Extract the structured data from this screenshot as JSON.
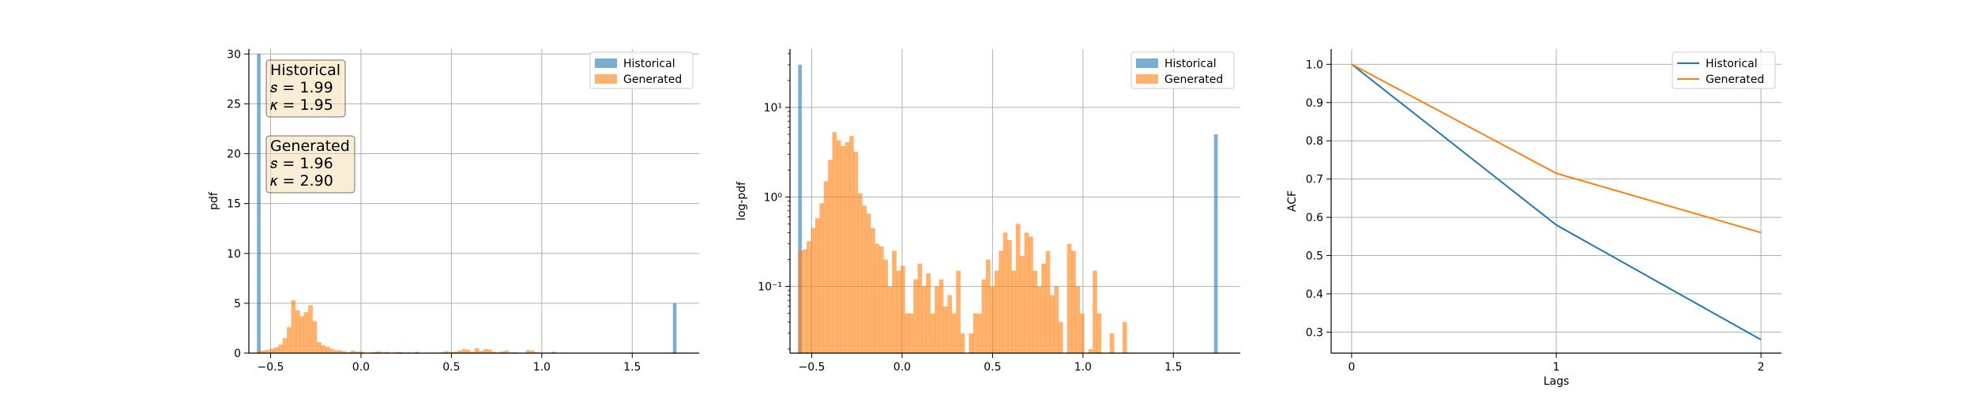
{
  "chart_data": [
    {
      "type": "histogram",
      "ylabel": "pdf",
      "xlim": [
        -0.62,
        1.87
      ],
      "ylim": [
        0,
        30.5
      ],
      "xticks": [
        -0.5,
        0.0,
        0.5,
        1.0,
        1.5
      ],
      "xtick_labels": [
        "−0.5",
        "0.0",
        "0.5",
        "1.0",
        "1.5"
      ],
      "yticks": [
        0,
        5,
        10,
        15,
        20,
        25,
        30
      ],
      "ytick_labels": [
        "0",
        "5",
        "10",
        "15",
        "20",
        "25",
        "30"
      ],
      "grid": true,
      "legend_position": "top-right",
      "series": [
        {
          "name": "Historical",
          "color": "#1f77b4",
          "bins": [
            [
              -0.575,
              -0.555,
              30.0
            ],
            [
              1.725,
              1.745,
              5.0
            ]
          ]
        },
        {
          "name": "Generated",
          "color": "#ff7f0e",
          "bin_start": -0.575,
          "bin_width": 0.0236,
          "values": [
            0.25,
            0.26,
            0.32,
            0.45,
            0.58,
            0.85,
            1.5,
            2.6,
            5.3,
            4.3,
            3.7,
            4.1,
            4.8,
            3.2,
            1.1,
            0.8,
            0.65,
            0.45,
            0.3,
            0.28,
            0.2,
            0.1,
            0.25,
            0.15,
            0.17,
            0.05,
            0.05,
            0.12,
            0.18,
            0.1,
            0.14,
            0.05,
            0.1,
            0.12,
            0.06,
            0.08,
            0.05,
            0.15,
            0.03,
            0,
            0.03,
            0.05,
            0.05,
            0.12,
            0.2,
            0.1,
            0.15,
            0.25,
            0.4,
            0.33,
            0.15,
            0.5,
            0.22,
            0.4,
            0.36,
            0.15,
            0.1,
            0.18,
            0.25,
            0.08,
            0.1,
            0.04,
            0,
            0.3,
            0.25,
            0.1,
            0.05,
            0,
            0.02,
            0.15,
            0.05,
            0,
            0,
            0.03,
            0,
            0,
            0.04
          ]
        }
      ],
      "annotations": [
        {
          "lines": [
            "Historical",
            "𝑠 = 1.99",
            "𝜅 = 1.95"
          ]
        },
        {
          "lines": [
            "Generated",
            "𝑠 = 1.96",
            "𝜅 = 2.90"
          ]
        }
      ]
    },
    {
      "type": "histogram",
      "ylabel": "log-pdf",
      "yscale": "log",
      "xlim": [
        -0.62,
        1.87
      ],
      "ylim": [
        0.018,
        45
      ],
      "xticks": [
        -0.5,
        0.0,
        0.5,
        1.0,
        1.5
      ],
      "xtick_labels": [
        "−0.5",
        "0.0",
        "0.5",
        "1.0",
        "1.5"
      ],
      "yticks": [
        0.1,
        1,
        10
      ],
      "ytick_labels": [
        "10⁻¹",
        "10⁰",
        "10¹"
      ],
      "grid": true,
      "legend_position": "top-right",
      "series": [
        {
          "name": "Historical",
          "color": "#1f77b4",
          "bins": [
            [
              -0.575,
              -0.555,
              30.0
            ],
            [
              1.725,
              1.745,
              5.0
            ]
          ]
        },
        {
          "name": "Generated",
          "color": "#ff7f0e",
          "bin_start": -0.575,
          "bin_width": 0.0236,
          "values": [
            0.25,
            0.26,
            0.32,
            0.45,
            0.58,
            0.85,
            1.5,
            2.6,
            5.3,
            4.3,
            3.7,
            4.1,
            4.8,
            3.2,
            1.1,
            0.8,
            0.65,
            0.45,
            0.3,
            0.28,
            0.2,
            0.1,
            0.25,
            0.15,
            0.17,
            0.05,
            0.05,
            0.12,
            0.18,
            0.1,
            0.14,
            0.05,
            0.1,
            0.12,
            0.06,
            0.08,
            0.05,
            0.15,
            0.03,
            0,
            0.03,
            0.05,
            0.05,
            0.12,
            0.2,
            0.1,
            0.15,
            0.25,
            0.4,
            0.33,
            0.15,
            0.5,
            0.22,
            0.4,
            0.36,
            0.15,
            0.1,
            0.18,
            0.25,
            0.08,
            0.1,
            0.04,
            0,
            0.3,
            0.25,
            0.1,
            0.05,
            0,
            0.02,
            0.15,
            0.05,
            0,
            0,
            0.03,
            0,
            0,
            0.04
          ]
        }
      ]
    },
    {
      "type": "line",
      "xlabel": "Lags",
      "ylabel": "ACF",
      "xlim": [
        -0.1,
        2.1
      ],
      "ylim": [
        0.245,
        1.04
      ],
      "xticks": [
        0,
        1,
        2
      ],
      "xtick_labels": [
        "0",
        "1",
        "2"
      ],
      "yticks": [
        0.3,
        0.4,
        0.5,
        0.6,
        0.7,
        0.8,
        0.9,
        1.0
      ],
      "ytick_labels": [
        "0.3",
        "0.4",
        "0.5",
        "0.6",
        "0.7",
        "0.8",
        "0.9",
        "1.0"
      ],
      "grid": true,
      "legend_position": "top-right",
      "x": [
        0,
        1,
        2
      ],
      "series": [
        {
          "name": "Historical",
          "color": "#1f77b4",
          "values": [
            1.0,
            0.58,
            0.28
          ]
        },
        {
          "name": "Generated",
          "color": "#ff7f0e",
          "values": [
            1.0,
            0.715,
            0.56
          ]
        }
      ]
    }
  ]
}
